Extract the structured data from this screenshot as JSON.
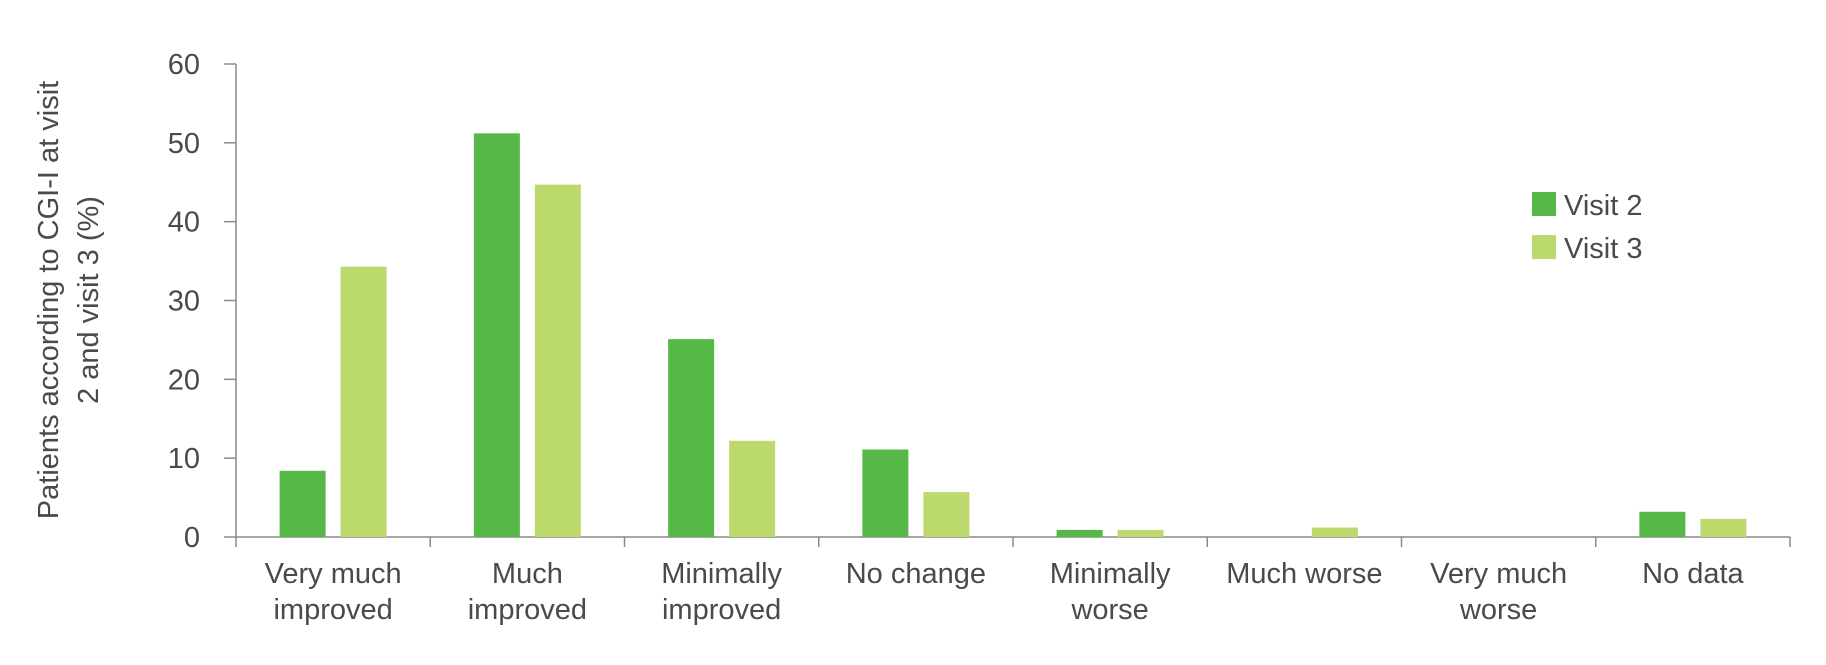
{
  "chart_data": {
    "type": "bar",
    "title": "",
    "xlabel": "",
    "ylabel": [
      "Patients according to CGI-I at visit",
      "2 and visit 3 (%)"
    ],
    "ylim": [
      0,
      60
    ],
    "yticks": [
      0,
      10,
      20,
      30,
      40,
      50,
      60
    ],
    "grid": false,
    "legend_position": "top-right",
    "categories": [
      [
        "Very much",
        "improved"
      ],
      [
        "Much",
        "improved"
      ],
      [
        "Minimally",
        "improved"
      ],
      [
        "No change"
      ],
      [
        "Minimally",
        "worse"
      ],
      [
        "Much worse"
      ],
      [
        "Very much",
        "worse"
      ],
      [
        "No data"
      ]
    ],
    "series": [
      {
        "name": "Visit 2",
        "color": "#55b847",
        "values": [
          8.4,
          51.2,
          25.1,
          11.1,
          0.9,
          0,
          0,
          3.2
        ]
      },
      {
        "name": "Visit 3",
        "color": "#bcd96e",
        "values": [
          34.3,
          44.7,
          12.2,
          5.7,
          0.9,
          1.2,
          0,
          2.3
        ]
      }
    ]
  }
}
